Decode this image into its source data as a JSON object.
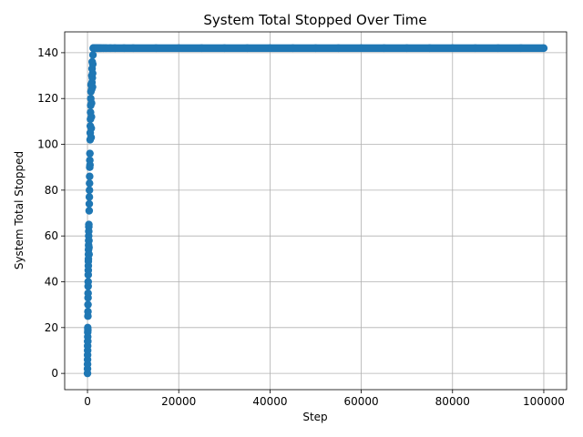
{
  "chart_data": {
    "type": "scatter",
    "title": "System Total Stopped Over Time",
    "xlabel": "Step",
    "ylabel": "System Total Stopped",
    "xlim": [
      -5000,
      105000
    ],
    "ylim": [
      -7.1,
      149.1
    ],
    "xticks": [
      0,
      20000,
      40000,
      60000,
      80000,
      100000
    ],
    "yticks": [
      0,
      20,
      40,
      60,
      80,
      100,
      120,
      140
    ],
    "grid": true,
    "marker_color": "#1f77b4",
    "series": [
      {
        "x": [
          0,
          0,
          10,
          10,
          20,
          30,
          30,
          40,
          50,
          50,
          60,
          70,
          80,
          90,
          100,
          110,
          120,
          130,
          140,
          150,
          160,
          170,
          180,
          190,
          200,
          210,
          220,
          240,
          250,
          260,
          280,
          290,
          300,
          320,
          330,
          350,
          370,
          390,
          410,
          430,
          450,
          470,
          490,
          510,
          530,
          550,
          580,
          600,
          620,
          650,
          670,
          700,
          720,
          750,
          780,
          800,
          830,
          860,
          890,
          920,
          950,
          980,
          1000,
          1030,
          1060,
          1100,
          1130,
          1160,
          1200,
          1250,
          1300,
          1350,
          1400,
          1450,
          1500,
          1550,
          1600,
          1650,
          1700,
          1800,
          1900,
          2000,
          2100,
          2200,
          2400,
          2600,
          2800,
          3000,
          3500,
          4000,
          5000,
          6000,
          8000,
          10000,
          15000,
          20000,
          25000,
          30000,
          35000,
          40000,
          45000,
          50000,
          55000,
          60000,
          65000,
          70000,
          75000,
          80000,
          85000,
          90000,
          95000,
          100000
        ],
        "y": [
          0,
          2,
          4,
          6,
          8,
          10,
          12,
          14,
          16,
          18,
          20,
          14,
          19,
          25,
          27,
          30,
          33,
          35,
          38,
          40,
          43,
          45,
          47,
          49,
          50,
          52,
          54,
          56,
          58,
          60,
          62,
          64,
          65,
          58,
          55,
          52,
          71,
          74,
          77,
          80,
          83,
          86,
          90,
          93,
          96,
          91,
          102,
          105,
          108,
          111,
          114,
          117,
          120,
          123,
          126,
          103,
          107,
          112,
          118,
          124,
          130,
          127,
          133,
          136,
          129,
          125,
          131,
          135,
          139,
          142,
          142,
          142,
          142,
          142,
          142,
          142,
          142,
          142,
          142,
          142,
          142,
          142,
          142,
          142,
          142,
          142,
          142,
          142,
          142,
          142,
          142,
          142,
          142,
          142,
          142,
          142,
          142,
          142,
          142,
          142,
          142,
          142,
          142,
          142,
          142,
          142,
          142,
          142,
          142,
          142,
          142,
          142
        ]
      }
    ]
  }
}
